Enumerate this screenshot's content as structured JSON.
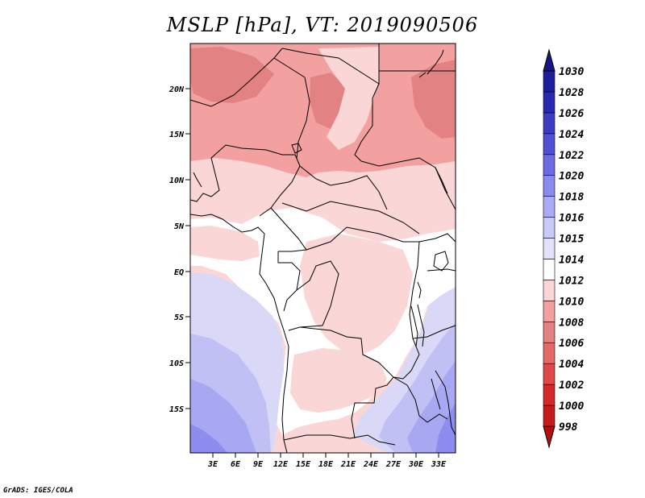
{
  "title": "MSLP [hPa], VT: 2019090506",
  "credit": "GrADS: IGES/COLA",
  "map": {
    "units": "hPa",
    "lat_ticks": [
      "20N",
      "15N",
      "10N",
      "5N",
      "EQ",
      "5S",
      "10S",
      "15S"
    ],
    "lon_ticks": [
      "3E",
      "6E",
      "9E",
      "12E",
      "15E",
      "18E",
      "21E",
      "24E",
      "27E",
      "30E",
      "33E"
    ]
  },
  "colorbar": {
    "levels": [
      "998",
      "1000",
      "1002",
      "1004",
      "1006",
      "1008",
      "1010",
      "1012",
      "1014",
      "1015",
      "1016",
      "1018",
      "1020",
      "1022",
      "1024",
      "1026",
      "1028",
      "1030"
    ],
    "colors": [
      "#b30f0f",
      "#c41b1b",
      "#d52929",
      "#df4848",
      "#e46a6a",
      "#e38282",
      "#f2a0a0",
      "#fbd6d6",
      "#ffffff",
      "#e2e2fa",
      "#c9c9fa",
      "#ababf5",
      "#8b8bed",
      "#6b6be2",
      "#5050d2",
      "#3c3cc2",
      "#2828b0",
      "#1e1e9a",
      "#161685"
    ]
  },
  "colors": {
    "sea_low": "#d9d9f7",
    "sea_mid": "#c0c0f5",
    "sea_deep": "#9090ec",
    "land_1012": "#fbd6d6",
    "land_1010": "#f2a0a0",
    "land_1008": "#e38282",
    "land_1014": "#ffffff"
  }
}
